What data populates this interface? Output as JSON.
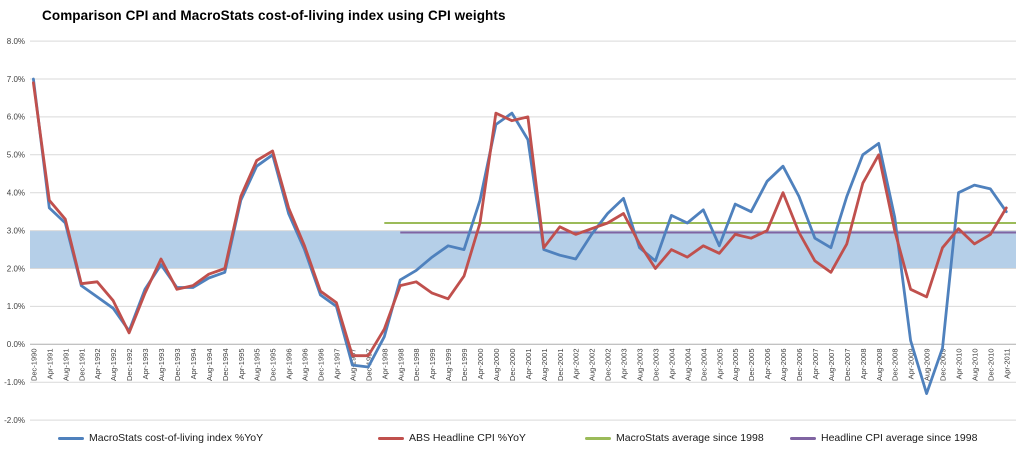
{
  "chart_data": {
    "type": "line",
    "title": "Comparison CPI and MacroStats cost-of-living index using CPI weights",
    "categories": [
      "Dec-1990",
      "Apr-1991",
      "Aug-1991",
      "Dec-1991",
      "Apr-1992",
      "Aug-1992",
      "Dec-1992",
      "Apr-1993",
      "Aug-1993",
      "Dec-1993",
      "Apr-1994",
      "Aug-1994",
      "Dec-1994",
      "Apr-1995",
      "Aug-1995",
      "Dec-1995",
      "Apr-1996",
      "Aug-1996",
      "Dec-1996",
      "Apr-1997",
      "Aug-1997",
      "Dec-1997",
      "Apr-1998",
      "Aug-1998",
      "Dec-1998",
      "Apr-1999",
      "Aug-1999",
      "Dec-1999",
      "Apr-2000",
      "Aug-2000",
      "Dec-2000",
      "Apr-2001",
      "Aug-2001",
      "Dec-2001",
      "Apr-2002",
      "Aug-2002",
      "Dec-2002",
      "Apr-2003",
      "Aug-2003",
      "Dec-2003",
      "Apr-2004",
      "Aug-2004",
      "Dec-2004",
      "Apr-2005",
      "Aug-2005",
      "Dec-2005",
      "Apr-2006",
      "Aug-2006",
      "Dec-2006",
      "Apr-2007",
      "Aug-2007",
      "Dec-2007",
      "Apr-2008",
      "Aug-2008",
      "Dec-2008",
      "Apr-2009",
      "Aug-2009",
      "Dec-2009",
      "Apr-2010",
      "Aug-2010",
      "Dec-2010",
      "Apr-2011"
    ],
    "series": [
      {
        "name": "MacroStats cost-of-living index %YoY",
        "color": "#4F81BD",
        "width": 2.8,
        "values": [
          7.0,
          3.6,
          3.2,
          1.55,
          1.25,
          0.95,
          0.35,
          1.45,
          2.1,
          1.5,
          1.5,
          1.75,
          1.9,
          3.8,
          4.7,
          5.0,
          3.45,
          2.5,
          1.3,
          1.0,
          -0.55,
          -0.6,
          0.2,
          1.7,
          1.95,
          2.3,
          2.6,
          2.5,
          3.8,
          5.8,
          6.1,
          5.4,
          2.5,
          2.35,
          2.25,
          2.9,
          3.45,
          3.85,
          2.55,
          2.2,
          3.4,
          3.2,
          3.55,
          2.6,
          3.7,
          3.5,
          4.3,
          4.7,
          3.9,
          2.8,
          2.55,
          3.9,
          5.0,
          5.3,
          3.35,
          0.1,
          -1.3,
          -0.1,
          4.0,
          4.2,
          4.1,
          3.5
        ]
      },
      {
        "name": "ABS Headline CPI %YoY",
        "color": "#C0504D",
        "width": 2.8,
        "values": [
          6.9,
          3.8,
          3.3,
          1.6,
          1.65,
          1.15,
          0.3,
          1.35,
          2.25,
          1.45,
          1.55,
          1.85,
          2.0,
          3.9,
          4.85,
          5.1,
          3.6,
          2.6,
          1.4,
          1.1,
          -0.3,
          -0.3,
          0.4,
          1.55,
          1.65,
          1.35,
          1.2,
          1.8,
          3.2,
          6.1,
          5.9,
          6.0,
          2.55,
          3.1,
          2.9,
          3.05,
          3.2,
          3.45,
          2.65,
          2.0,
          2.5,
          2.3,
          2.6,
          2.4,
          2.9,
          2.8,
          3.0,
          4.0,
          2.95,
          2.2,
          1.9,
          2.65,
          4.25,
          5.0,
          3.0,
          1.45,
          1.25,
          2.55,
          3.05,
          2.65,
          2.9,
          3.6
        ]
      }
    ],
    "reference_lines": [
      {
        "name": "MacroStats average since 1998",
        "color": "#9BBB59",
        "value": 3.2,
        "start_category": "Apr-1998"
      },
      {
        "name": "Headline CPI average since 1998",
        "color": "#8064A2",
        "value": 2.95,
        "start_category": "Aug-1998"
      }
    ],
    "target_band": {
      "from": 2.0,
      "to": 3.0,
      "color": "#B5CFE8"
    },
    "y_axis": {
      "min": -2,
      "max": 8,
      "step": 1,
      "tick_format": "percent_1dp"
    },
    "x_tick_rotation": -90,
    "grid": true,
    "legend_position": "bottom"
  }
}
